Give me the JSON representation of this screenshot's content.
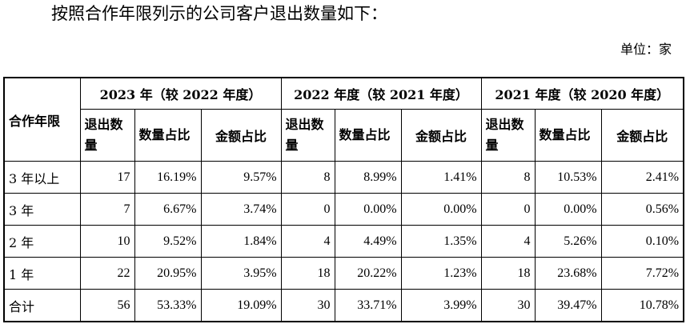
{
  "intro": "按照合作年限列示的公司客户退出数量如下：",
  "unit": "单位：家",
  "table": {
    "first_header": "合作年限",
    "groups": [
      "2023 年（较 2022 年度）",
      "2022 年度（较 2021 年度）",
      "2021 年度（较 2020 年度）"
    ],
    "sub_headers": [
      "退出数量",
      "数量占比",
      "金额占比"
    ],
    "rows": [
      {
        "label": "3 年以上",
        "cells": [
          "17",
          "16.19%",
          "9.57%",
          "8",
          "8.99%",
          "1.41%",
          "8",
          "10.53%",
          "2.41%"
        ]
      },
      {
        "label": "3 年",
        "cells": [
          "7",
          "6.67%",
          "3.74%",
          "0",
          "0.00%",
          "0.00%",
          "0",
          "0.00%",
          "0.56%"
        ]
      },
      {
        "label": "2 年",
        "cells": [
          "10",
          "9.52%",
          "1.84%",
          "4",
          "4.49%",
          "1.35%",
          "4",
          "5.26%",
          "0.10%"
        ]
      },
      {
        "label": "1 年",
        "cells": [
          "22",
          "20.95%",
          "3.95%",
          "18",
          "20.22%",
          "1.23%",
          "18",
          "23.68%",
          "7.72%"
        ]
      },
      {
        "label": "合计",
        "cells": [
          "56",
          "53.33%",
          "19.09%",
          "30",
          "33.71%",
          "3.99%",
          "30",
          "39.47%",
          "10.78%"
        ]
      }
    ]
  }
}
